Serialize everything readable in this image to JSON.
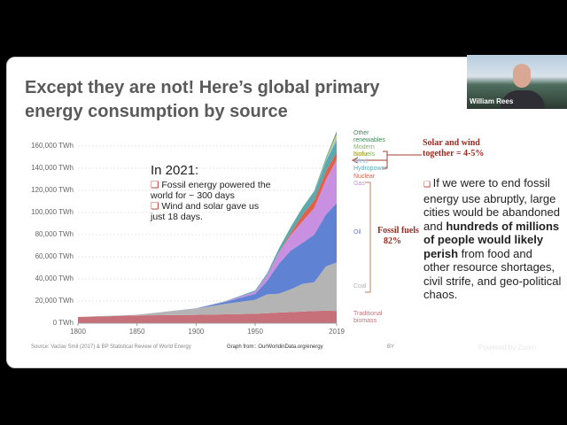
{
  "slide": {
    "title": "Except they are not! Here’s global primary energy consumption by source",
    "chart_data": {
      "type": "stacked_area",
      "x": [
        1800,
        1850,
        1900,
        1925,
        1950,
        1960,
        1970,
        1980,
        1990,
        2000,
        2010,
        2019
      ],
      "series": [
        {
          "name": "Traditional biomass",
          "color": "#c8707a",
          "values": [
            5556,
            7000,
            7500,
            8000,
            8500,
            9000,
            9600,
            10000,
            10500,
            11000,
            11300,
            11100
          ]
        },
        {
          "name": "Coal",
          "color": "#b4b4b4",
          "values": [
            97,
            570,
            5700,
            9500,
            12600,
            17000,
            17000,
            20500,
            25000,
            26000,
            40000,
            43800
          ]
        },
        {
          "name": "Oil",
          "color": "#6082d2",
          "values": [
            0,
            0,
            180,
            1800,
            5400,
            12000,
            27000,
            35000,
            37000,
            43000,
            47000,
            53600
          ]
        },
        {
          "name": "Gas",
          "color": "#c98fe0",
          "values": [
            0,
            0,
            60,
            400,
            2100,
            5000,
            10000,
            14000,
            19500,
            24000,
            31500,
            39300
          ]
        },
        {
          "name": "Nuclear",
          "color": "#e0604a",
          "values": [
            0,
            0,
            0,
            0,
            0,
            0,
            200,
            1900,
            5800,
            7000,
            7500,
            7000
          ]
        },
        {
          "name": "Hydropower",
          "color": "#5ba9b0",
          "values": [
            0,
            0,
            0,
            300,
            1000,
            1800,
            3500,
            5000,
            6000,
            7400,
            9300,
            10400
          ]
        },
        {
          "name": "Wind",
          "color": "#9ec5e8",
          "values": [
            0,
            0,
            0,
            0,
            0,
            0,
            0,
            0,
            0,
            85,
            950,
            3500
          ]
        },
        {
          "name": "Solar",
          "color": "#f2d04a",
          "values": [
            0,
            0,
            0,
            0,
            0,
            0,
            0,
            0,
            0,
            0,
            90,
            1800
          ]
        },
        {
          "name": "Modern biofuels",
          "color": "#7ab85a",
          "values": [
            0,
            0,
            0,
            0,
            0,
            0,
            0,
            0,
            120,
            170,
            1000,
            1100
          ]
        },
        {
          "name": "Other renewables",
          "color": "#3f8a5a",
          "values": [
            0,
            0,
            0,
            0,
            0,
            0,
            0,
            300,
            500,
            700,
            1000,
            1600
          ]
        }
      ],
      "xlim": [
        1800,
        2019
      ],
      "xticks": [
        1800,
        1850,
        1900,
        1950,
        2019
      ],
      "ylim": [
        0,
        175000
      ],
      "yticks": [
        {
          "value": 0,
          "label": "0 TWh"
        },
        {
          "value": 20000,
          "label": "20,000 TWh"
        },
        {
          "value": 40000,
          "label": "40,000 TWh"
        },
        {
          "value": 60000,
          "label": "60,000 TWh"
        },
        {
          "value": 80000,
          "label": "80,000 TWh"
        },
        {
          "value": 100000,
          "label": "100,000 TWh"
        },
        {
          "value": 120000,
          "label": "120,000 TWh"
        },
        {
          "value": 140000,
          "label": "140,000 TWh"
        },
        {
          "value": 160000,
          "label": "160,000 TWh"
        }
      ],
      "grid": true,
      "annotations": {
        "solar_wind": "Solar and wind together = 4-5%",
        "fossil": "Fossil fuels",
        "fossil_share": "82%"
      }
    },
    "inset": {
      "heading": "In 2021:",
      "bullets": [
        "Fossil energy powered the world for ~ 300 days",
        "Wind and solar gave us just 18 days."
      ]
    },
    "side_text": {
      "before": "If we were to end fossil energy use abruptly, large cities would be abandoned and",
      "bold": "hundreds of millions of people would likely perish",
      "after": "from food and other resource shortages, civil strife, and geo-political chaos."
    },
    "source": "Source: Vaclav Smil (2017) & BP Statistical Review of World Energy",
    "graph_from": "Graph from:: OurWorldinData.org/energy",
    "license": "BY",
    "watermark": "Powered by Zoom"
  },
  "video": {
    "name": "William Rees"
  }
}
